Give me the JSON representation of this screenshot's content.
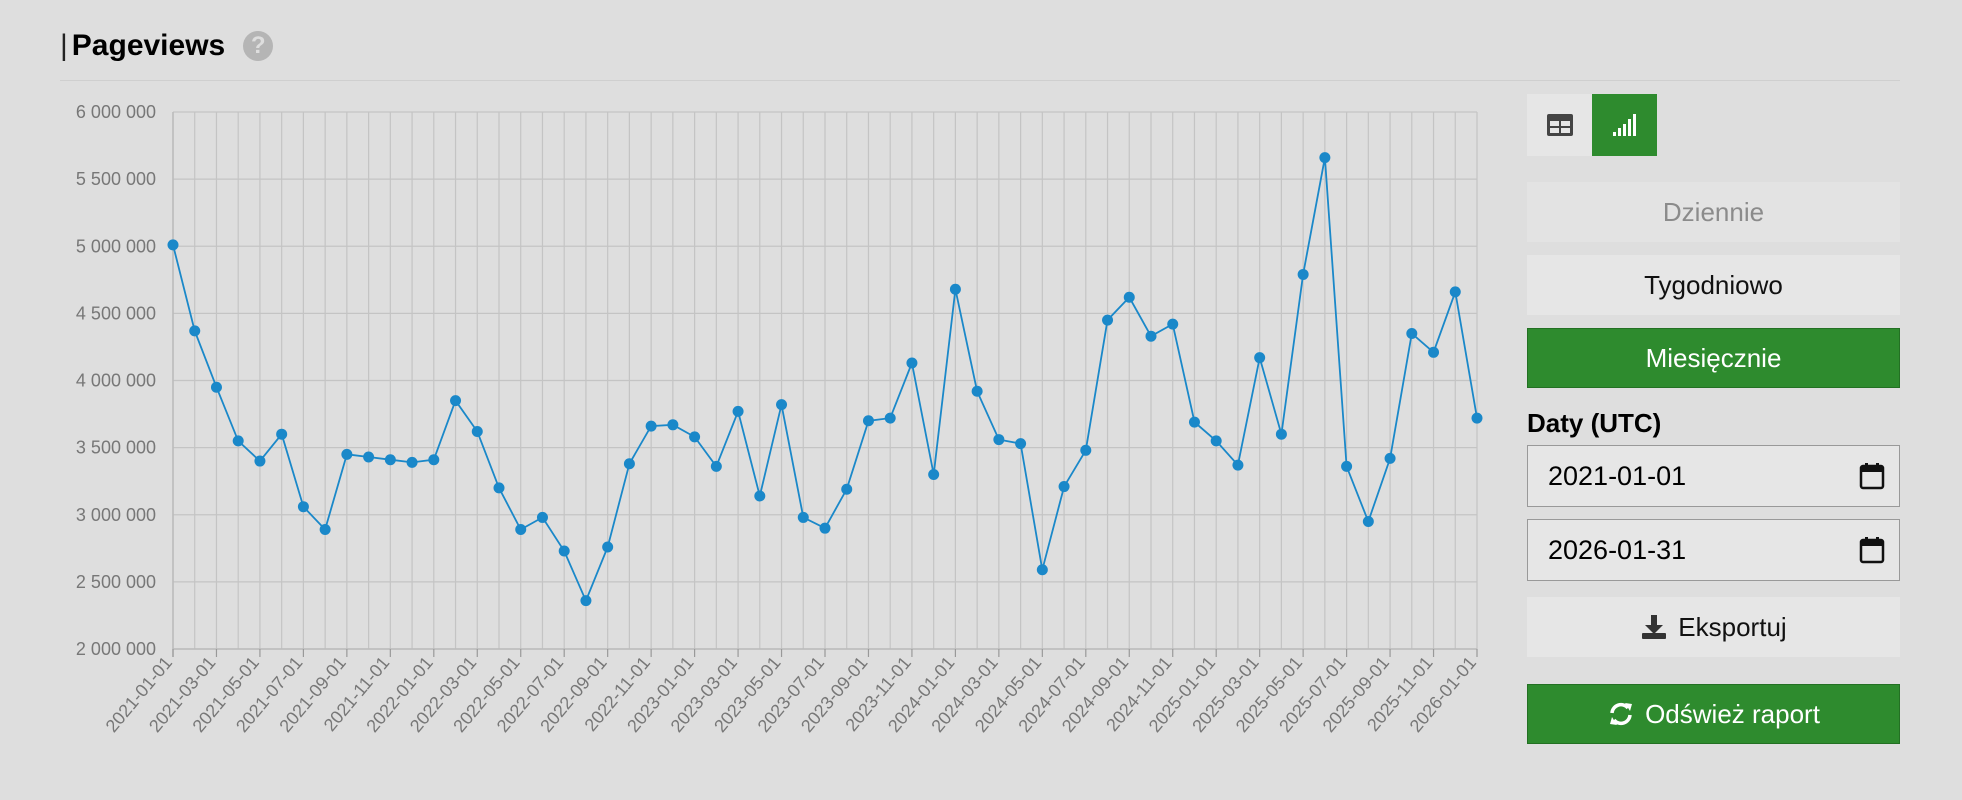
{
  "header": {
    "bar": "|",
    "title": "Pageviews",
    "help_icon": "?"
  },
  "sidebar": {
    "period_buttons": [
      {
        "label": "Dziennie",
        "state": "disabled"
      },
      {
        "label": "Tygodniowo",
        "state": "normal"
      },
      {
        "label": "Miesięcznie",
        "state": "active"
      }
    ],
    "dates_label": "Daty (UTC)",
    "start_date": "2021-01-01",
    "end_date": "2026-01-31",
    "export_label": "Eksportuj",
    "refresh_label": "Odśwież raport",
    "accent_color": "#2e8b2e",
    "icons": [
      "table-icon",
      "bar-chart-icon",
      "calendar-icon",
      "download-icon",
      "refresh-icon"
    ]
  },
  "chart_data": {
    "type": "line",
    "ylim": [
      2000000,
      6000000
    ],
    "yticks": [
      2000000,
      2500000,
      3000000,
      3500000,
      4000000,
      4500000,
      5000000,
      5500000,
      6000000
    ],
    "ytick_labels": [
      "2 000 000",
      "2 500 000",
      "3 000 000",
      "3 500 000",
      "4 000 000",
      "4 500 000",
      "5 000 000",
      "5 500 000",
      "6 000 000"
    ],
    "xtick_labels": [
      "2021-01-01",
      "2021-03-01",
      "2021-05-01",
      "2021-07-01",
      "2021-09-01",
      "2021-11-01",
      "2022-01-01",
      "2022-03-01",
      "2022-05-01",
      "2022-07-01",
      "2022-09-01",
      "2022-11-01",
      "2023-01-01",
      "2023-03-01",
      "2023-05-01",
      "2023-07-01",
      "2023-09-01",
      "2023-11-01",
      "2024-01-01",
      "2024-03-01",
      "2024-05-01",
      "2024-07-01",
      "2024-09-01",
      "2024-11-01",
      "2025-01-01",
      "2025-03-01",
      "2025-05-01",
      "2025-07-01",
      "2025-09-01",
      "2025-11-01",
      "2026-01-01"
    ],
    "x": [
      "2021-01",
      "2021-02",
      "2021-03",
      "2021-04",
      "2021-05",
      "2021-06",
      "2021-07",
      "2021-08",
      "2021-09",
      "2021-10",
      "2021-11",
      "2021-12",
      "2022-01",
      "2022-02",
      "2022-03",
      "2022-04",
      "2022-05",
      "2022-06",
      "2022-07",
      "2022-08",
      "2022-09",
      "2022-10",
      "2022-11",
      "2022-12",
      "2023-01",
      "2023-02",
      "2023-03",
      "2023-04",
      "2023-05",
      "2023-06",
      "2023-07",
      "2023-08",
      "2023-09",
      "2023-10",
      "2023-11",
      "2023-12",
      "2024-01",
      "2024-02",
      "2024-03",
      "2024-04",
      "2024-05",
      "2024-06",
      "2024-07",
      "2024-08",
      "2024-09",
      "2024-10",
      "2024-11",
      "2024-12",
      "2025-01",
      "2025-02",
      "2025-03",
      "2025-04",
      "2025-05",
      "2025-06",
      "2025-07",
      "2025-08",
      "2025-09",
      "2025-10",
      "2025-11",
      "2025-12",
      "2026-01"
    ],
    "series": [
      {
        "color": "#1a88c9",
        "values": [
          5010000,
          4370000,
          3950000,
          3550000,
          3400000,
          3600000,
          3060000,
          2890000,
          3450000,
          3430000,
          3410000,
          3390000,
          3410000,
          3850000,
          3620000,
          3200000,
          2890000,
          2980000,
          2730000,
          2360000,
          2760000,
          3380000,
          3660000,
          3670000,
          3580000,
          3360000,
          3770000,
          3140000,
          3820000,
          2980000,
          2900000,
          3190000,
          3700000,
          3720000,
          4130000,
          3300000,
          4680000,
          3920000,
          3560000,
          3530000,
          2590000,
          3210000,
          3480000,
          4450000,
          4620000,
          4330000,
          4420000,
          3690000,
          3550000,
          3370000,
          4170000,
          3600000,
          4790000,
          5660000,
          3360000,
          2950000,
          3420000,
          4350000,
          4210000,
          4660000,
          3720000
        ]
      }
    ],
    "grid": true
  }
}
